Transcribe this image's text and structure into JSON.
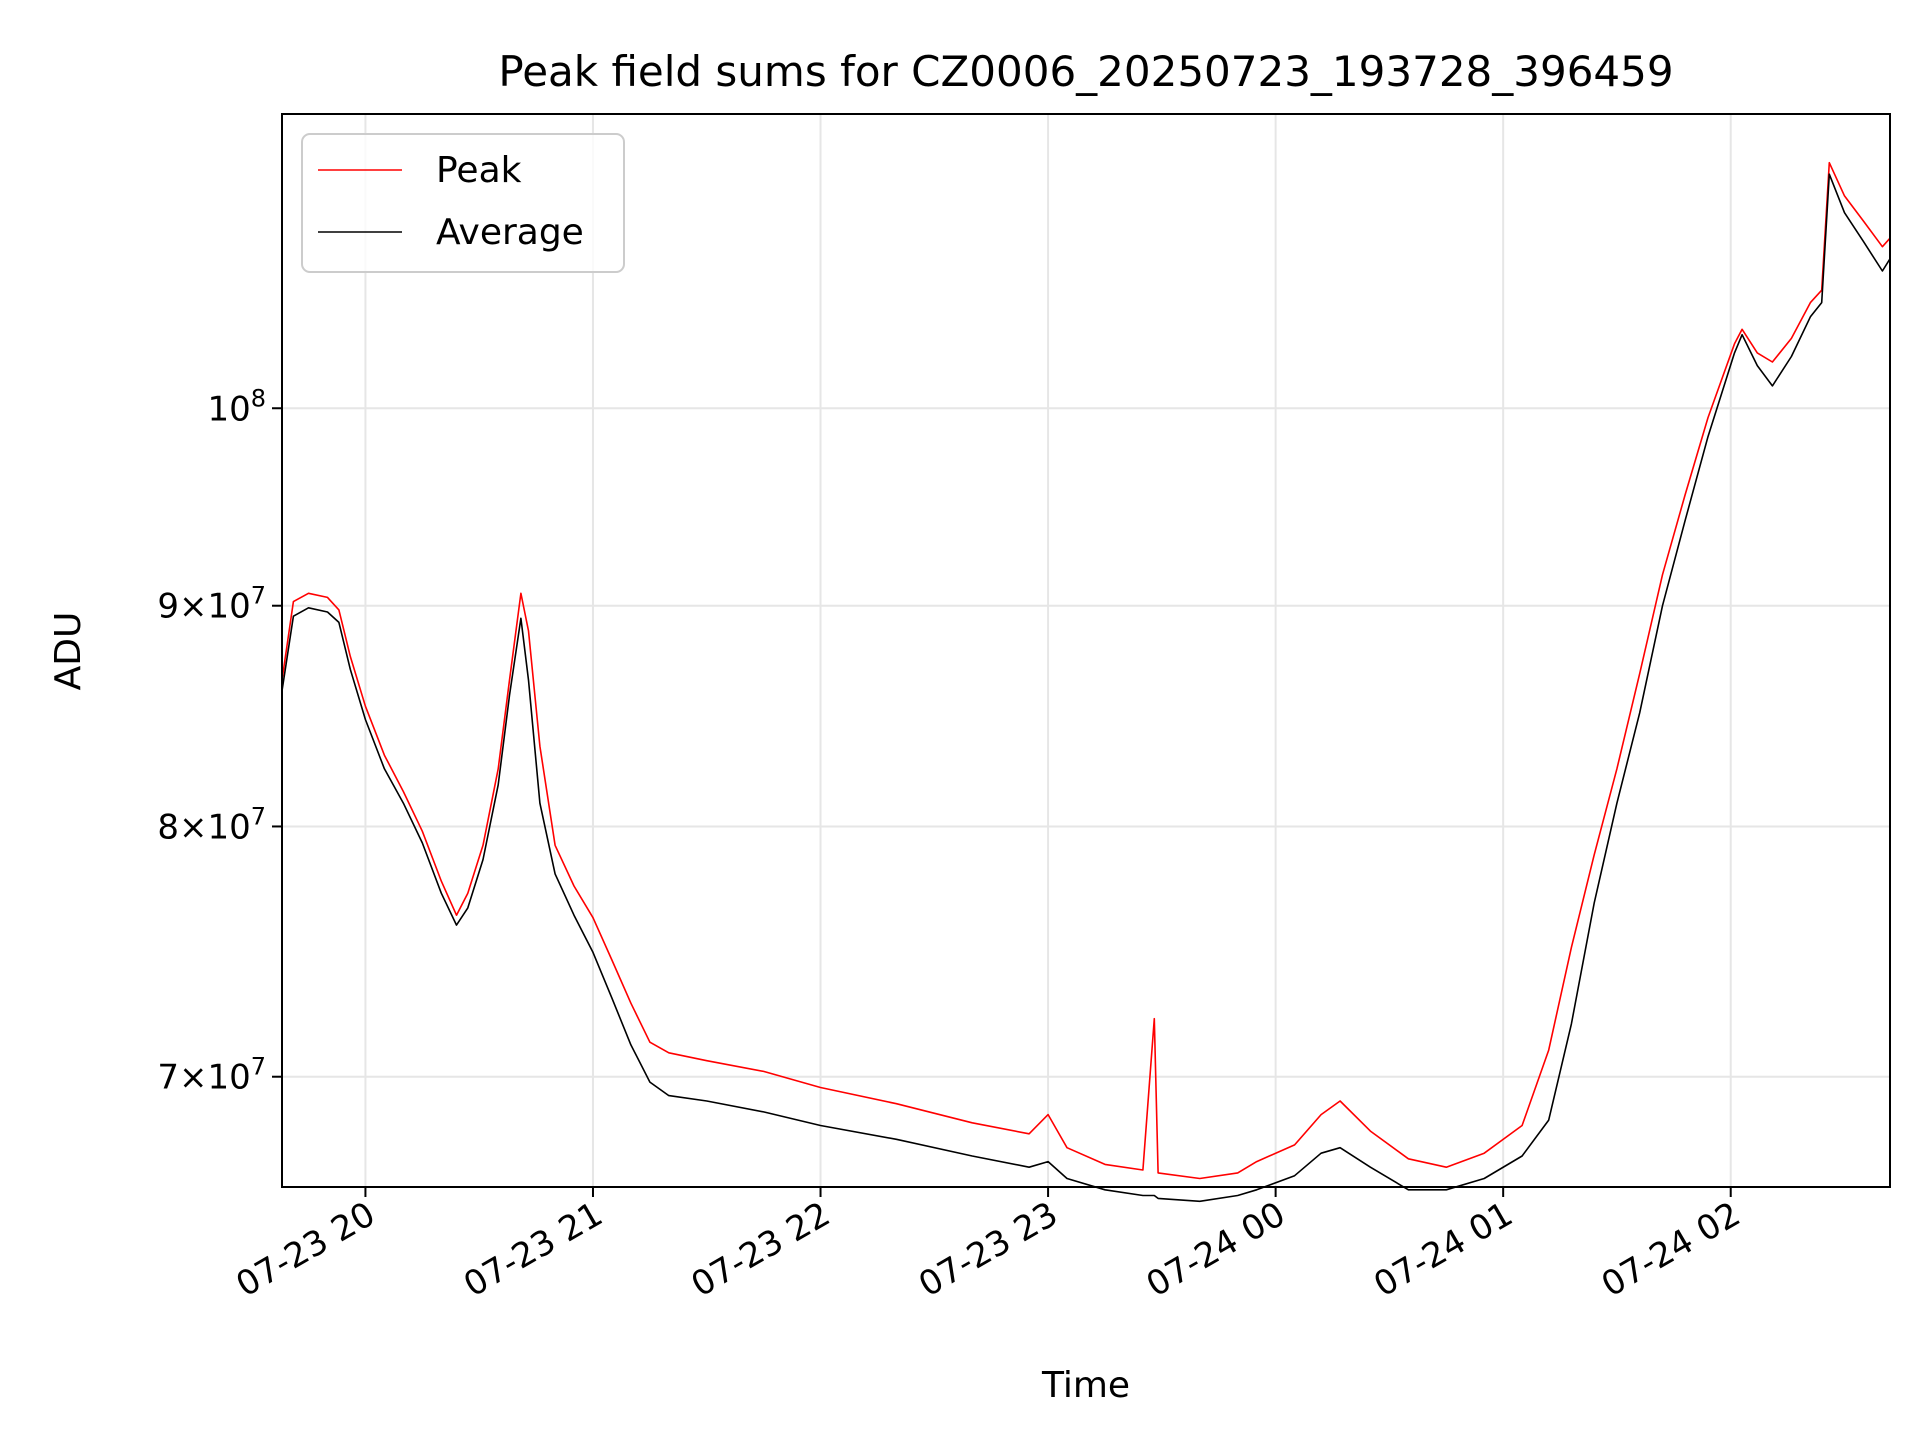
{
  "chart_data": {
    "type": "line",
    "title": "Peak field sums for CZ0006_20250723_193728_396459",
    "xlabel": "Time",
    "ylabel": "ADU",
    "y_scale": "log",
    "ylim": [
      66000000,
      117000000
    ],
    "xlim": [
      "2025-07-23 19:38",
      "2025-07-24 02:42"
    ],
    "grid": true,
    "legend_position": "upper left",
    "x_ticks": [
      {
        "value": "2025-07-23 20:00",
        "label": "07-23 20"
      },
      {
        "value": "2025-07-23 21:00",
        "label": "07-23 21"
      },
      {
        "value": "2025-07-23 22:00",
        "label": "07-23 22"
      },
      {
        "value": "2025-07-23 23:00",
        "label": "07-23 23"
      },
      {
        "value": "2025-07-24 00:00",
        "label": "07-24 00"
      },
      {
        "value": "2025-07-24 01:00",
        "label": "07-24 01"
      },
      {
        "value": "2025-07-24 02:00",
        "label": "07-24 02"
      }
    ],
    "y_ticks": [
      {
        "value": 70000000,
        "base": "7",
        "exp": "7",
        "times": true
      },
      {
        "value": 80000000,
        "base": "8",
        "exp": "7",
        "times": true
      },
      {
        "value": 90000000,
        "base": "9",
        "exp": "7",
        "times": true
      },
      {
        "value": 100000000,
        "base": "10",
        "exp": "8",
        "times": false
      }
    ],
    "series": [
      {
        "name": "Peak",
        "color": "#ff0000",
        "points": [
          [
            "2025-07-23 19:38",
            86500000
          ],
          [
            "2025-07-23 19:41",
            90200000
          ],
          [
            "2025-07-23 19:45",
            90600000
          ],
          [
            "2025-07-23 19:50",
            90400000
          ],
          [
            "2025-07-23 19:53",
            89800000
          ],
          [
            "2025-07-23 19:56",
            87600000
          ],
          [
            "2025-07-23 20:00",
            85300000
          ],
          [
            "2025-07-23 20:05",
            83100000
          ],
          [
            "2025-07-23 20:10",
            81500000
          ],
          [
            "2025-07-23 20:15",
            79800000
          ],
          [
            "2025-07-23 20:20",
            77700000
          ],
          [
            "2025-07-23 20:24",
            76300000
          ],
          [
            "2025-07-23 20:27",
            77200000
          ],
          [
            "2025-07-23 20:31",
            79200000
          ],
          [
            "2025-07-23 20:35",
            82500000
          ],
          [
            "2025-07-23 20:38",
            86500000
          ],
          [
            "2025-07-23 20:41",
            90600000
          ],
          [
            "2025-07-23 20:43",
            88800000
          ],
          [
            "2025-07-23 20:46",
            83500000
          ],
          [
            "2025-07-23 20:50",
            79200000
          ],
          [
            "2025-07-23 20:55",
            77500000
          ],
          [
            "2025-07-23 21:00",
            76200000
          ],
          [
            "2025-07-23 21:05",
            74500000
          ],
          [
            "2025-07-23 21:10",
            72800000
          ],
          [
            "2025-07-23 21:15",
            71300000
          ],
          [
            "2025-07-23 21:20",
            70900000
          ],
          [
            "2025-07-23 21:30",
            70600000
          ],
          [
            "2025-07-23 21:45",
            70200000
          ],
          [
            "2025-07-23 22:00",
            69600000
          ],
          [
            "2025-07-23 22:20",
            69000000
          ],
          [
            "2025-07-23 22:40",
            68300000
          ],
          [
            "2025-07-23 22:55",
            67900000
          ],
          [
            "2025-07-23 23:00",
            68600000
          ],
          [
            "2025-07-23 23:05",
            67400000
          ],
          [
            "2025-07-23 23:15",
            66800000
          ],
          [
            "2025-07-23 23:25",
            66600000
          ],
          [
            "2025-07-23 23:28",
            72200000
          ],
          [
            "2025-07-23 23:29",
            66500000
          ],
          [
            "2025-07-23 23:40",
            66300000
          ],
          [
            "2025-07-23 23:50",
            66500000
          ],
          [
            "2025-07-23 23:55",
            66900000
          ],
          [
            "2025-07-24 00:05",
            67500000
          ],
          [
            "2025-07-24 00:12",
            68600000
          ],
          [
            "2025-07-24 00:17",
            69100000
          ],
          [
            "2025-07-24 00:25",
            68000000
          ],
          [
            "2025-07-24 00:35",
            67000000
          ],
          [
            "2025-07-24 00:45",
            66700000
          ],
          [
            "2025-07-24 00:55",
            67200000
          ],
          [
            "2025-07-24 01:05",
            68200000
          ],
          [
            "2025-07-24 01:12",
            71000000
          ],
          [
            "2025-07-24 01:18",
            75000000
          ],
          [
            "2025-07-24 01:24",
            78800000
          ],
          [
            "2025-07-24 01:30",
            82500000
          ],
          [
            "2025-07-24 01:36",
            86800000
          ],
          [
            "2025-07-24 01:42",
            91500000
          ],
          [
            "2025-07-24 01:48",
            95500000
          ],
          [
            "2025-07-24 01:54",
            99500000
          ],
          [
            "2025-07-24 02:01",
            103500000
          ],
          [
            "2025-07-24 02:03",
            104300000
          ],
          [
            "2025-07-24 02:07",
            103000000
          ],
          [
            "2025-07-24 02:11",
            102500000
          ],
          [
            "2025-07-24 02:16",
            103800000
          ],
          [
            "2025-07-24 02:21",
            105800000
          ],
          [
            "2025-07-24 02:24",
            106500000
          ],
          [
            "2025-07-24 02:26",
            114000000
          ],
          [
            "2025-07-24 02:30",
            112000000
          ],
          [
            "2025-07-24 02:35",
            110500000
          ],
          [
            "2025-07-24 02:40",
            109000000
          ],
          [
            "2025-07-24 02:42",
            109500000
          ]
        ]
      },
      {
        "name": "Average",
        "color": "#000000",
        "points": [
          [
            "2025-07-23 19:38",
            86000000
          ],
          [
            "2025-07-23 19:41",
            89500000
          ],
          [
            "2025-07-23 19:45",
            89900000
          ],
          [
            "2025-07-23 19:50",
            89700000
          ],
          [
            "2025-07-23 19:53",
            89200000
          ],
          [
            "2025-07-23 19:56",
            87000000
          ],
          [
            "2025-07-23 20:00",
            84700000
          ],
          [
            "2025-07-23 20:05",
            82500000
          ],
          [
            "2025-07-23 20:10",
            81000000
          ],
          [
            "2025-07-23 20:15",
            79300000
          ],
          [
            "2025-07-23 20:20",
            77200000
          ],
          [
            "2025-07-23 20:24",
            75900000
          ],
          [
            "2025-07-23 20:27",
            76600000
          ],
          [
            "2025-07-23 20:31",
            78600000
          ],
          [
            "2025-07-23 20:35",
            81800000
          ],
          [
            "2025-07-23 20:38",
            85800000
          ],
          [
            "2025-07-23 20:41",
            89400000
          ],
          [
            "2025-07-23 20:43",
            86500000
          ],
          [
            "2025-07-23 20:46",
            81000000
          ],
          [
            "2025-07-23 20:50",
            78000000
          ],
          [
            "2025-07-23 20:55",
            76300000
          ],
          [
            "2025-07-23 21:00",
            74800000
          ],
          [
            "2025-07-23 21:05",
            73000000
          ],
          [
            "2025-07-23 21:10",
            71200000
          ],
          [
            "2025-07-23 21:15",
            69800000
          ],
          [
            "2025-07-23 21:20",
            69300000
          ],
          [
            "2025-07-23 21:30",
            69100000
          ],
          [
            "2025-07-23 21:45",
            68700000
          ],
          [
            "2025-07-23 22:00",
            68200000
          ],
          [
            "2025-07-23 22:20",
            67700000
          ],
          [
            "2025-07-23 22:40",
            67100000
          ],
          [
            "2025-07-23 22:55",
            66700000
          ],
          [
            "2025-07-23 23:00",
            66900000
          ],
          [
            "2025-07-23 23:05",
            66300000
          ],
          [
            "2025-07-23 23:15",
            65900000
          ],
          [
            "2025-07-23 23:25",
            65700000
          ],
          [
            "2025-07-23 23:28",
            65700000
          ],
          [
            "2025-07-23 23:29",
            65600000
          ],
          [
            "2025-07-23 23:40",
            65500000
          ],
          [
            "2025-07-23 23:50",
            65700000
          ],
          [
            "2025-07-23 23:55",
            65900000
          ],
          [
            "2025-07-24 00:05",
            66400000
          ],
          [
            "2025-07-24 00:12",
            67200000
          ],
          [
            "2025-07-24 00:17",
            67400000
          ],
          [
            "2025-07-24 00:25",
            66700000
          ],
          [
            "2025-07-24 00:35",
            65900000
          ],
          [
            "2025-07-24 00:45",
            65900000
          ],
          [
            "2025-07-24 00:55",
            66300000
          ],
          [
            "2025-07-24 01:05",
            67100000
          ],
          [
            "2025-07-24 01:12",
            68400000
          ],
          [
            "2025-07-24 01:18",
            72000000
          ],
          [
            "2025-07-24 01:24",
            76800000
          ],
          [
            "2025-07-24 01:30",
            81000000
          ],
          [
            "2025-07-24 01:36",
            85000000
          ],
          [
            "2025-07-24 01:42",
            90000000
          ],
          [
            "2025-07-24 01:48",
            94200000
          ],
          [
            "2025-07-24 01:54",
            98500000
          ],
          [
            "2025-07-24 02:01",
            103000000
          ],
          [
            "2025-07-24 02:03",
            104000000
          ],
          [
            "2025-07-24 02:07",
            102300000
          ],
          [
            "2025-07-24 02:11",
            101200000
          ],
          [
            "2025-07-24 02:16",
            102800000
          ],
          [
            "2025-07-24 02:21",
            105000000
          ],
          [
            "2025-07-24 02:24",
            105800000
          ],
          [
            "2025-07-24 02:26",
            113300000
          ],
          [
            "2025-07-24 02:30",
            111000000
          ],
          [
            "2025-07-24 02:35",
            109300000
          ],
          [
            "2025-07-24 02:40",
            107600000
          ],
          [
            "2025-07-24 02:42",
            108300000
          ]
        ]
      }
    ]
  }
}
